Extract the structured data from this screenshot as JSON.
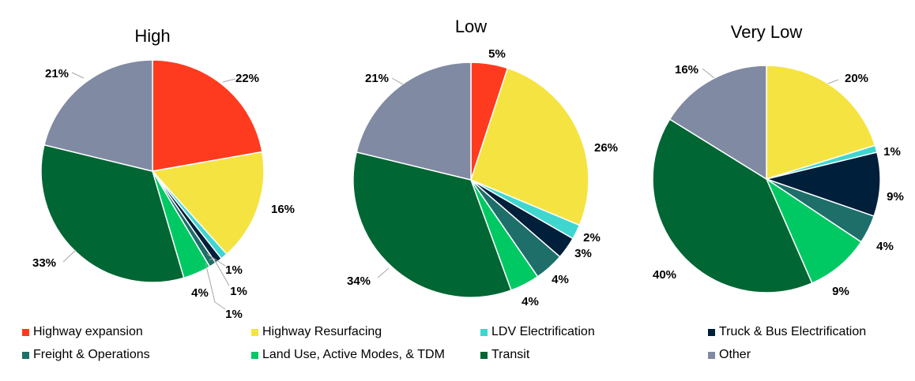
{
  "chart_data": {
    "type": "pie",
    "categories": [
      {
        "name": "Highway expansion",
        "color": "#FF3B1F"
      },
      {
        "name": "Highway Resurfacing",
        "color": "#F5E342"
      },
      {
        "name": "LDV Electrification",
        "color": "#3FD6D0"
      },
      {
        "name": "Truck & Bus Electrification",
        "color": "#001F3A"
      },
      {
        "name": "Freight & Operations",
        "color": "#1E6E6A"
      },
      {
        "name": "Land Use, Active Modes, & TDM",
        "color": "#00C964"
      },
      {
        "name": "Transit",
        "color": "#006633"
      },
      {
        "name": "Other",
        "color": "#808AA3"
      }
    ],
    "pies": [
      {
        "title": "High",
        "values": [
          22,
          16,
          1,
          1,
          1,
          4,
          33,
          21
        ],
        "labels": [
          "22%",
          "16%",
          "1%",
          "1%",
          "1%",
          "4%",
          "33%",
          "21%"
        ]
      },
      {
        "title": "Low",
        "values": [
          5,
          26,
          2,
          3,
          4,
          4,
          34,
          21
        ],
        "labels": [
          "5%",
          "26%",
          "2%",
          "3%",
          "4%",
          "4%",
          "34%",
          "21%"
        ]
      },
      {
        "title": "Very Low",
        "values": [
          0,
          20,
          1,
          9,
          4,
          9,
          40,
          16
        ],
        "labels": [
          "",
          "20%",
          "1%",
          "9%",
          "4%",
          "9%",
          "40%",
          "16%"
        ]
      }
    ],
    "legend_position": "bottom"
  }
}
